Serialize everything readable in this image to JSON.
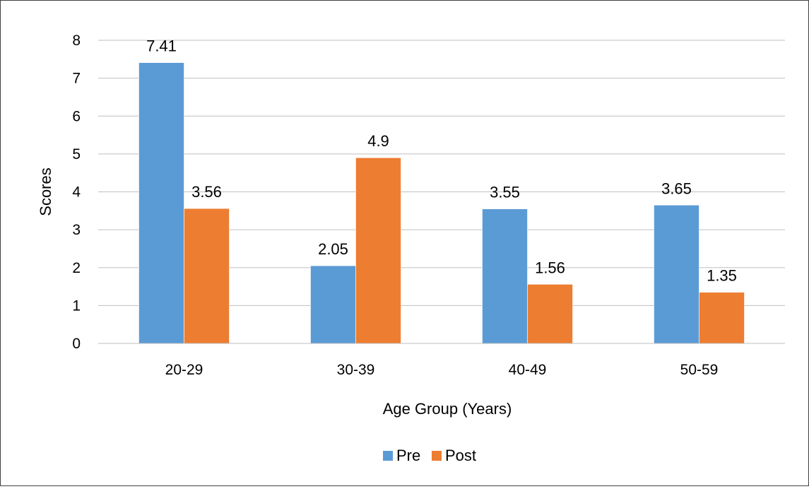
{
  "chart_data": {
    "type": "bar",
    "title": "",
    "xlabel": "Age Group (Years)",
    "ylabel": "Scores",
    "categories": [
      "20-29",
      "30-39",
      "40-49",
      "50-59"
    ],
    "ylim": [
      0,
      8
    ],
    "yticks": [
      0,
      1,
      2,
      3,
      4,
      5,
      6,
      7,
      8
    ],
    "grid": true,
    "legend_position": "bottom",
    "series": [
      {
        "name": "Pre",
        "color": "#5b9bd5",
        "values": [
          7.41,
          2.05,
          3.55,
          3.65
        ],
        "labels": [
          "7.41",
          "2.05",
          "3.55",
          "3.65"
        ]
      },
      {
        "name": "Post",
        "color": "#ed7d31",
        "values": [
          3.56,
          4.9,
          1.56,
          1.35
        ],
        "labels": [
          "3.56",
          "4.9",
          "1.56",
          "1.35"
        ]
      }
    ]
  }
}
